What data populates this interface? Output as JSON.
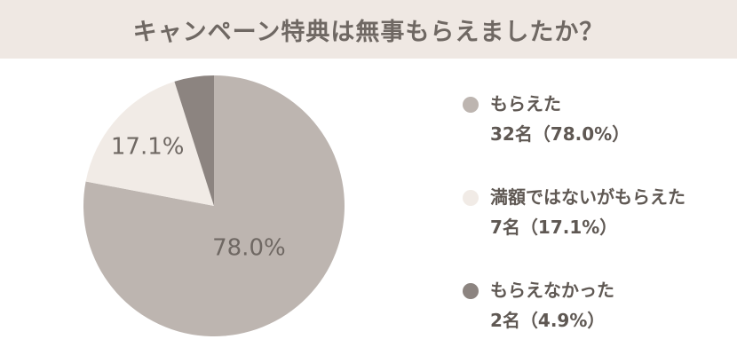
{
  "title": "キャンペーン特典は無事もらえましたか？",
  "chart_data": {
    "type": "pie",
    "title": "キャンペーン特典は無事もらえましたか？",
    "slices": [
      {
        "label": "もらえた",
        "count_label": "32名（78.0%）",
        "count": 32,
        "percent": 78.0,
        "display": "78.0%",
        "color": "#bdb5b0"
      },
      {
        "label": "満額ではないがもらえた",
        "count_label": "7名（17.1%）",
        "count": 7,
        "percent": 17.1,
        "display": "17.1%",
        "color": "#f1ebe6"
      },
      {
        "label": "もらえなかった",
        "count_label": "2名（4.9%）",
        "count": 2,
        "percent": 4.9,
        "display": "",
        "color": "#8c8480"
      }
    ],
    "legend_position": "right"
  }
}
